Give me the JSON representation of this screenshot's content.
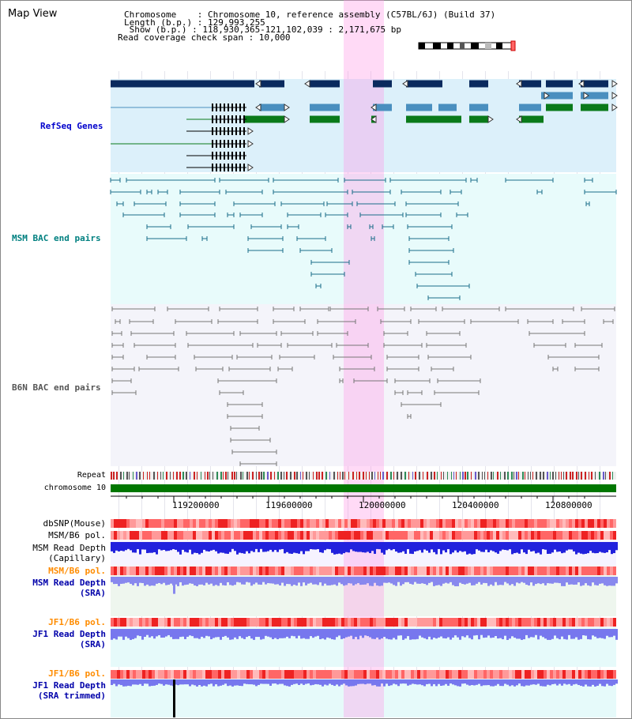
{
  "header": {
    "title": "Map View",
    "info_lines": [
      "Chromosome    : Chromosome 10, reference assembly (C57BL/6J) (Build 37)",
      "Length (b.p.) : 129,993,255",
      " Show (b.p.) : 118,930,365-121,102,039 : 2,171,675 bp",
      "Read coverage check span : 10,000"
    ]
  },
  "tracks": {
    "refseq": "RefSeq Genes",
    "msm_bac": "MSM BAC end pairs",
    "b6n_bac": "B6N BAC end pairs",
    "repeat": "Repeat",
    "chromosome": "chromosome 10",
    "dbsnp": "dbSNP(Mouse)",
    "msm_b6_pol_1": "MSM/B6 pol.",
    "msm_read_depth_cap_1": "MSM Read Depth",
    "msm_read_depth_cap_2": "(Capillary)",
    "msm_b6_pol_2": "MSM/B6 pol.",
    "msm_read_depth_sra_1": "MSM Read Depth",
    "msm_read_depth_sra_2": "(SRA)",
    "jf1_b6_pol_1": "JF1/B6 pol.",
    "jf1_read_depth_sra_1": "JF1 Read Depth",
    "jf1_read_depth_sra_2": "(SRA)",
    "jf1_b6_pol_2": "JF1/B6 pol.",
    "jf1_read_depth_trim_1": "JF1 Read Depth",
    "jf1_read_depth_trim_2": "(SRA trimmed)"
  },
  "ruler": {
    "labels": [
      "119200000",
      "119600000",
      "120000000",
      "120400000",
      "120800000"
    ]
  },
  "colors": {
    "refseq_navy": "#0a2a5e",
    "refseq_blue": "#4a8fbf",
    "refseq_green": "#0a7a1a",
    "refseq_label": "#0000cc",
    "msm_label": "#008080",
    "b6n_label": "#555555",
    "pol_label": "#ff8c00",
    "depth_label": "#0000aa",
    "highlight": "#ff96e6"
  }
}
